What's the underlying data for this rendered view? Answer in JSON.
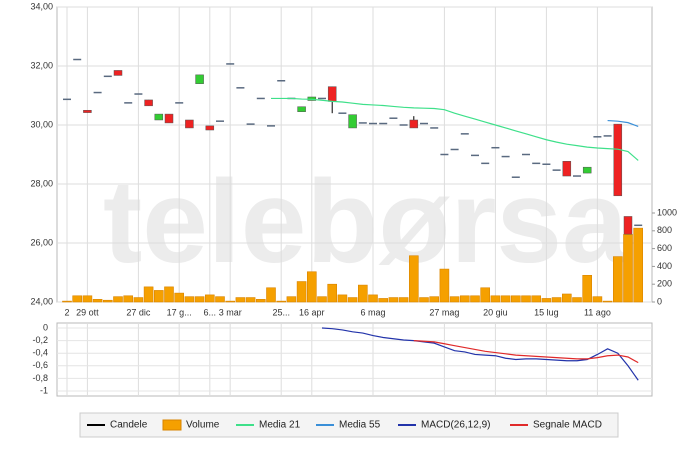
{
  "watermark": "telebørsa",
  "chart_data": [
    {
      "type": "candlestick",
      "categories": [
        "2",
        null,
        "29 ott",
        null,
        null,
        null,
        null,
        "27 dic",
        null,
        null,
        null,
        "17 g...",
        null,
        null,
        "6...",
        null,
        "3 mar",
        null,
        null,
        null,
        null,
        "25...",
        null,
        null,
        "16 apr",
        null,
        null,
        null,
        null,
        null,
        "6 mag",
        null,
        null,
        null,
        null,
        null,
        null,
        "27 mag",
        null,
        null,
        null,
        null,
        "20 giu",
        null,
        null,
        null,
        null,
        "15 lug",
        null,
        null,
        null,
        null,
        "11 ago",
        null,
        null,
        null,
        null
      ],
      "candle_name": "Candele",
      "candle_color": "#000000",
      "up_color": "#33cc33",
      "down_color": "#ee2222",
      "flat_color": "#5a6a80",
      "open": [
        30.87,
        32.22,
        30.5,
        31.1,
        31.65,
        31.85,
        30.75,
        31.05,
        30.85,
        30.17,
        30.37,
        30.75,
        30.17,
        31.4,
        29.97,
        30.13,
        32.07,
        31.26,
        30.03,
        30.9,
        29.97,
        31.5,
        30.9,
        30.45,
        30.83,
        30.9,
        31.3,
        30.4,
        29.9,
        30.07,
        30.05,
        30.05,
        30.23,
        30.0,
        30.17,
        30.05,
        29.9,
        29.0,
        29.17,
        29.7,
        28.97,
        28.7,
        29.23,
        28.93,
        28.23,
        29.0,
        28.7,
        28.67,
        28.47,
        28.77,
        28.27,
        28.37,
        29.6,
        29.63,
        30.03,
        26.9,
        26.6
      ],
      "high": [
        30.87,
        32.22,
        30.5,
        31.1,
        31.65,
        31.85,
        30.75,
        31.05,
        30.85,
        30.37,
        30.37,
        30.75,
        30.17,
        31.7,
        29.97,
        30.13,
        32.07,
        31.26,
        30.03,
        30.9,
        29.97,
        31.5,
        30.9,
        30.62,
        30.95,
        30.9,
        31.3,
        30.4,
        30.35,
        30.07,
        30.05,
        30.05,
        30.23,
        30.0,
        30.3,
        30.05,
        29.9,
        29.0,
        29.17,
        29.7,
        28.97,
        28.7,
        29.23,
        28.93,
        28.23,
        29.0,
        28.7,
        28.67,
        28.47,
        28.77,
        28.27,
        28.57,
        29.6,
        29.63,
        30.03,
        26.9,
        26.6
      ],
      "low": [
        30.87,
        32.22,
        30.42,
        31.1,
        31.65,
        31.68,
        30.75,
        31.05,
        30.65,
        30.17,
        30.07,
        30.75,
        29.9,
        31.4,
        29.83,
        30.13,
        32.07,
        31.26,
        30.03,
        30.9,
        29.97,
        31.5,
        30.9,
        30.45,
        30.83,
        30.9,
        30.4,
        30.4,
        29.9,
        30.07,
        30.05,
        30.05,
        30.23,
        30.0,
        29.9,
        30.05,
        29.9,
        29.0,
        29.17,
        29.7,
        28.97,
        28.7,
        29.23,
        28.93,
        28.23,
        29.0,
        28.7,
        28.67,
        28.47,
        28.27,
        28.27,
        28.37,
        29.6,
        29.63,
        27.6,
        26.3,
        26.6
      ],
      "close": [
        30.87,
        32.22,
        30.42,
        31.1,
        31.65,
        31.68,
        30.75,
        31.05,
        30.65,
        30.37,
        30.07,
        30.75,
        29.9,
        31.7,
        29.83,
        30.13,
        32.07,
        31.26,
        30.03,
        30.9,
        29.97,
        31.5,
        30.9,
        30.62,
        30.95,
        30.9,
        30.8,
        30.4,
        30.35,
        30.07,
        30.05,
        30.05,
        30.23,
        30.0,
        29.9,
        30.05,
        29.9,
        29.0,
        29.17,
        29.7,
        28.97,
        28.7,
        29.23,
        28.93,
        28.23,
        29.0,
        28.7,
        28.67,
        28.47,
        28.27,
        28.27,
        28.57,
        29.6,
        29.63,
        27.6,
        26.3,
        26.6
      ],
      "volume": {
        "name": "Volume",
        "color": "#f5a000",
        "axis": "y2",
        "values": [
          10,
          70,
          70,
          30,
          20,
          60,
          70,
          50,
          170,
          130,
          170,
          100,
          60,
          60,
          80,
          60,
          10,
          50,
          50,
          30,
          160,
          10,
          60,
          230,
          340,
          60,
          200,
          80,
          50,
          190,
          80,
          40,
          50,
          50,
          520,
          50,
          60,
          370,
          60,
          70,
          70,
          160,
          70,
          70,
          70,
          70,
          70,
          40,
          50,
          90,
          50,
          300,
          60,
          10,
          510,
          760,
          830
        ]
      },
      "series": [
        {
          "name": "Media 21",
          "color": "#3ee08a",
          "values": [
            null,
            null,
            null,
            null,
            null,
            null,
            null,
            null,
            null,
            null,
            null,
            null,
            null,
            null,
            null,
            null,
            null,
            null,
            null,
            null,
            30.9,
            30.9,
            30.9,
            30.88,
            30.87,
            30.84,
            30.8,
            30.78,
            30.74,
            30.7,
            30.68,
            30.66,
            30.63,
            30.6,
            30.58,
            30.57,
            30.56,
            30.52,
            30.4,
            30.3,
            30.2,
            30.1,
            30.0,
            29.9,
            29.8,
            29.7,
            29.6,
            29.5,
            29.42,
            29.35,
            29.3,
            29.25,
            29.22,
            29.2,
            29.18,
            29.1,
            28.8
          ]
        },
        {
          "name": "Media 55",
          "color": "#3a8fd8",
          "values": [
            null,
            null,
            null,
            null,
            null,
            null,
            null,
            null,
            null,
            null,
            null,
            null,
            null,
            null,
            null,
            null,
            null,
            null,
            null,
            null,
            null,
            null,
            null,
            null,
            null,
            null,
            null,
            null,
            null,
            null,
            null,
            null,
            null,
            null,
            null,
            null,
            null,
            null,
            null,
            null,
            null,
            null,
            null,
            null,
            null,
            null,
            null,
            null,
            null,
            null,
            null,
            null,
            null,
            30.15,
            30.13,
            30.08,
            29.95
          ]
        }
      ],
      "ylim": [
        24,
        34
      ],
      "yticks": [
        {
          "value": 24,
          "label": "24,00"
        },
        {
          "value": 26,
          "label": "26,00"
        },
        {
          "value": 28,
          "label": "28,00"
        },
        {
          "value": 30,
          "label": "30,00"
        },
        {
          "value": 32,
          "label": "32,00"
        },
        {
          "value": 34,
          "label": "34,00"
        }
      ],
      "y2lim": [
        0,
        3315
      ],
      "y2ticks": [
        0,
        200,
        400,
        600,
        800,
        1000
      ],
      "grid": true
    },
    {
      "type": "line",
      "series": [
        {
          "name": "MACD(26,12,9)",
          "color": "#2233aa",
          "values": [
            null,
            null,
            null,
            null,
            null,
            null,
            null,
            null,
            null,
            null,
            null,
            null,
            null,
            null,
            null,
            null,
            null,
            null,
            null,
            null,
            null,
            null,
            null,
            null,
            null,
            0,
            -0.01,
            -0.03,
            -0.06,
            -0.08,
            -0.12,
            -0.15,
            -0.17,
            -0.19,
            -0.2,
            -0.22,
            -0.24,
            -0.3,
            -0.36,
            -0.38,
            -0.42,
            -0.43,
            -0.44,
            -0.48,
            -0.5,
            -0.49,
            -0.49,
            -0.5,
            -0.51,
            -0.52,
            -0.52,
            -0.5,
            -0.42,
            -0.33,
            -0.4,
            -0.6,
            -0.83
          ]
        },
        {
          "name": "Segnale MACD",
          "color": "#e02a2a",
          "values": [
            null,
            null,
            null,
            null,
            null,
            null,
            null,
            null,
            null,
            null,
            null,
            null,
            null,
            null,
            null,
            null,
            null,
            null,
            null,
            null,
            null,
            null,
            null,
            null,
            null,
            null,
            null,
            null,
            null,
            null,
            null,
            null,
            null,
            null,
            -0.2,
            -0.21,
            -0.22,
            -0.25,
            -0.28,
            -0.31,
            -0.34,
            -0.37,
            -0.39,
            -0.41,
            -0.43,
            -0.44,
            -0.45,
            -0.46,
            -0.47,
            -0.48,
            -0.49,
            -0.49,
            -0.47,
            -0.44,
            -0.43,
            -0.46,
            -0.55
          ]
        }
      ],
      "ylim": [
        -1.08,
        0.08
      ],
      "yticks": [
        0,
        {
          "value": -0.2,
          "label": "-0,2"
        },
        {
          "value": -0.4,
          "label": "-0,4"
        },
        {
          "value": -0.6,
          "label": "-0,6"
        },
        {
          "value": -0.8,
          "label": "-0,8"
        },
        -1
      ],
      "grid": true
    }
  ]
}
